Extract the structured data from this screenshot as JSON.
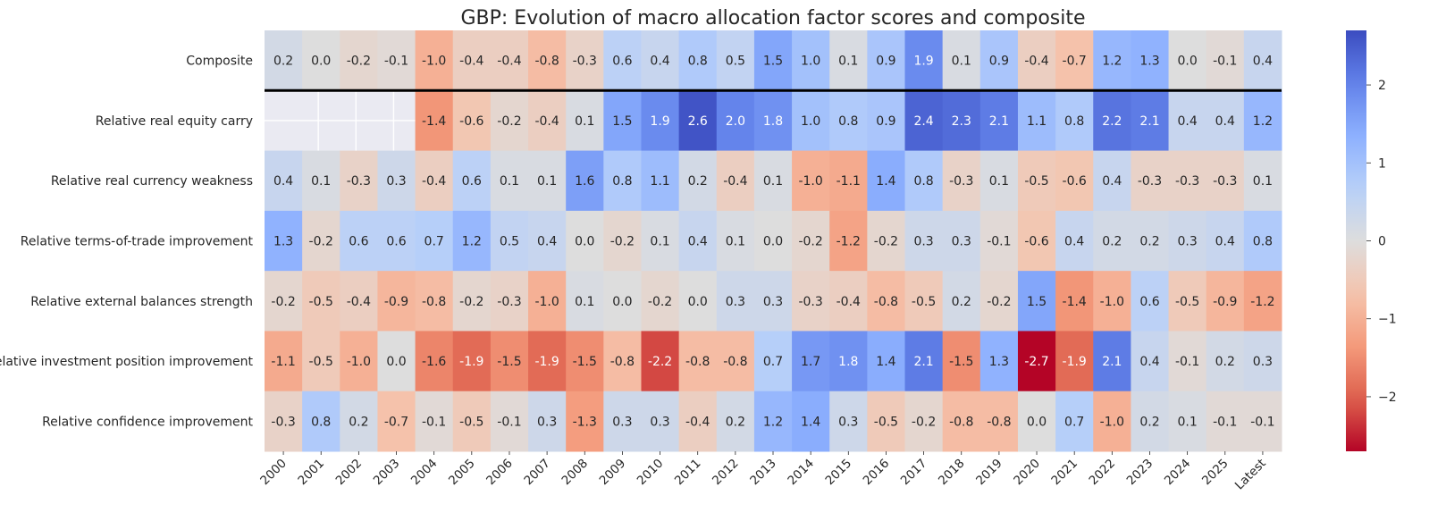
{
  "chart_data": {
    "type": "heatmap",
    "title": "GBP: Evolution of macro allocation factor scores and composite",
    "columns": [
      "2000",
      "2001",
      "2002",
      "2003",
      "2004",
      "2005",
      "2006",
      "2007",
      "2008",
      "2009",
      "2010",
      "2011",
      "2012",
      "2013",
      "2014",
      "2015",
      "2016",
      "2017",
      "2018",
      "2019",
      "2020",
      "2021",
      "2022",
      "2023",
      "2024",
      "2025",
      "Latest"
    ],
    "rows": [
      "Composite",
      "Relative real equity carry",
      "Relative real currency weakness",
      "Relative terms-of-trade improvement",
      "Relative external balances strength",
      "Relative investment position improvement",
      "Relative confidence improvement"
    ],
    "values": [
      [
        0.2,
        -0.0,
        -0.2,
        -0.1,
        -1.0,
        -0.4,
        -0.4,
        -0.8,
        -0.3,
        0.6,
        0.4,
        0.8,
        0.5,
        1.5,
        1.0,
        0.1,
        0.9,
        1.9,
        0.1,
        0.9,
        -0.4,
        -0.7,
        1.2,
        1.3,
        -0.0,
        -0.1,
        0.4
      ],
      [
        null,
        null,
        null,
        null,
        -1.4,
        -0.6,
        -0.2,
        -0.4,
        0.1,
        1.5,
        1.9,
        2.6,
        2.0,
        1.8,
        1.0,
        0.8,
        0.9,
        2.4,
        2.3,
        2.1,
        1.1,
        0.8,
        2.2,
        2.1,
        0.4,
        0.4,
        1.2
      ],
      [
        0.4,
        0.1,
        -0.3,
        0.3,
        -0.4,
        0.6,
        0.1,
        0.1,
        1.6,
        0.8,
        1.1,
        0.2,
        -0.4,
        0.1,
        -1.0,
        -1.1,
        1.4,
        0.8,
        -0.3,
        0.1,
        -0.5,
        -0.6,
        0.4,
        -0.3,
        -0.3,
        -0.3,
        0.1
      ],
      [
        1.3,
        -0.2,
        0.6,
        0.6,
        0.7,
        1.2,
        0.5,
        0.4,
        0.0,
        -0.2,
        0.1,
        0.4,
        0.1,
        -0.0,
        -0.2,
        -1.2,
        -0.2,
        0.3,
        0.3,
        -0.1,
        -0.6,
        0.4,
        0.2,
        0.2,
        0.3,
        0.4,
        0.8
      ],
      [
        -0.2,
        -0.5,
        -0.4,
        -0.9,
        -0.8,
        -0.2,
        -0.3,
        -1.0,
        0.1,
        -0.0,
        -0.2,
        0.0,
        0.3,
        0.3,
        -0.3,
        -0.4,
        -0.8,
        -0.5,
        0.2,
        -0.2,
        1.5,
        -1.4,
        -1.0,
        0.6,
        -0.5,
        -0.9,
        -1.2
      ],
      [
        -1.1,
        -0.5,
        -1.0,
        0.0,
        -1.6,
        -1.9,
        -1.5,
        -1.9,
        -1.5,
        -0.8,
        -2.2,
        -0.8,
        -0.8,
        0.7,
        1.7,
        1.8,
        1.4,
        2.1,
        -1.5,
        1.3,
        -2.7,
        -1.9,
        2.1,
        0.4,
        -0.1,
        0.2,
        0.3
      ],
      [
        -0.3,
        0.8,
        0.2,
        -0.7,
        -0.1,
        -0.5,
        -0.1,
        0.3,
        -1.3,
        0.3,
        0.3,
        -0.4,
        0.2,
        1.2,
        1.4,
        0.3,
        -0.5,
        -0.2,
        -0.8,
        -0.8,
        0.0,
        0.7,
        -1.0,
        0.2,
        0.1,
        -0.1,
        -0.1
      ]
    ],
    "colormap": "coolwarm_r",
    "vmin": -2.7,
    "vmax": 2.7,
    "colorbar_ticks": [
      -2,
      -1,
      0,
      1,
      2
    ],
    "colorbar_tick_labels": [
      "−2",
      "−1",
      "0",
      "1",
      "2"
    ],
    "missing_color": "#eaeaf2",
    "separator_after_row": 0,
    "xlabel": "",
    "ylabel": ""
  }
}
